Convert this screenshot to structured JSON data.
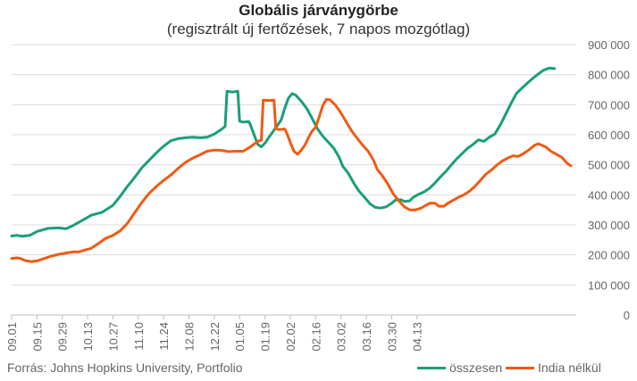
{
  "chart_data": {
    "type": "line",
    "title": "Globális járványgörbe",
    "subtitle": "(regisztrált új fertőzések, 7 napos mozgótlag)",
    "source": "Forrás: Johns Hopkins University, Portfolio",
    "ylim": [
      0,
      900000
    ],
    "yticks": [
      0,
      100000,
      200000,
      300000,
      400000,
      500000,
      600000,
      700000,
      800000,
      900000
    ],
    "ytick_labels": [
      "0",
      "100 000",
      "200 000",
      "300 000",
      "400 000",
      "500 000",
      "600 000",
      "700 000",
      "800 000",
      "900 000"
    ],
    "xtick_labels": [
      "09.01",
      "09.15",
      "09.29",
      "10.13",
      "10.27",
      "11.10",
      "11.24",
      "12.08",
      "12.22",
      "01.05",
      "01.19",
      "02.02",
      "02.16",
      "03.02",
      "03.16",
      "03.30",
      "04.13"
    ],
    "grid": true,
    "legend": "bottom-right",
    "series": [
      {
        "name": "összesen",
        "color": "#1a9e7a",
        "points": [
          [
            0,
            263000
          ],
          [
            3,
            265000
          ],
          [
            6,
            262000
          ],
          [
            10,
            265000
          ],
          [
            14,
            278000
          ],
          [
            20,
            288000
          ],
          [
            26,
            290000
          ],
          [
            30,
            287000
          ],
          [
            34,
            298000
          ],
          [
            40,
            318000
          ],
          [
            44,
            332000
          ],
          [
            50,
            342000
          ],
          [
            56,
            365000
          ],
          [
            60,
            395000
          ],
          [
            64,
            428000
          ],
          [
            68,
            458000
          ],
          [
            72,
            490000
          ],
          [
            76,
            515000
          ],
          [
            80,
            540000
          ],
          [
            84,
            562000
          ],
          [
            88,
            580000
          ],
          [
            92,
            587000
          ],
          [
            96,
            590000
          ],
          [
            100,
            592000
          ],
          [
            104,
            590000
          ],
          [
            108,
            592000
          ],
          [
            112,
            602000
          ],
          [
            116,
            618000
          ],
          [
            118,
            628000
          ],
          [
            119,
            745000
          ],
          [
            122,
            742000
          ],
          [
            125,
            745000
          ],
          [
            126,
            645000
          ],
          [
            128,
            642000
          ],
          [
            131,
            644000
          ],
          [
            132,
            632000
          ],
          [
            134,
            600000
          ],
          [
            136,
            568000
          ],
          [
            138,
            560000
          ],
          [
            140,
            572000
          ],
          [
            142,
            590000
          ],
          [
            145,
            615000
          ],
          [
            147,
            632000
          ],
          [
            149,
            650000
          ],
          [
            151,
            690000
          ],
          [
            153,
            722000
          ],
          [
            155,
            737000
          ],
          [
            157,
            732000
          ],
          [
            160,
            712000
          ],
          [
            163,
            688000
          ],
          [
            166,
            655000
          ],
          [
            169,
            620000
          ],
          [
            172,
            595000
          ],
          [
            175,
            575000
          ],
          [
            178,
            555000
          ],
          [
            181,
            525000
          ],
          [
            183,
            495000
          ],
          [
            186,
            472000
          ],
          [
            189,
            440000
          ],
          [
            192,
            412000
          ],
          [
            195,
            392000
          ],
          [
            198,
            370000
          ],
          [
            201,
            358000
          ],
          [
            204,
            356000
          ],
          [
            207,
            360000
          ],
          [
            210,
            372000
          ],
          [
            212,
            382000
          ],
          [
            215,
            384000
          ],
          [
            217,
            378000
          ],
          [
            220,
            380000
          ],
          [
            222,
            392000
          ],
          [
            225,
            402000
          ],
          [
            228,
            410000
          ],
          [
            231,
            422000
          ],
          [
            234,
            440000
          ],
          [
            237,
            460000
          ],
          [
            240,
            478000
          ],
          [
            243,
            500000
          ],
          [
            246,
            520000
          ],
          [
            249,
            538000
          ],
          [
            252,
            555000
          ],
          [
            255,
            568000
          ],
          [
            258,
            583000
          ],
          [
            261,
            578000
          ],
          [
            264,
            592000
          ],
          [
            267,
            602000
          ],
          [
            270,
            632000
          ],
          [
            273,
            668000
          ],
          [
            276,
            705000
          ],
          [
            279,
            738000
          ],
          [
            282,
            755000
          ],
          [
            285,
            772000
          ],
          [
            288,
            788000
          ],
          [
            291,
            802000
          ],
          [
            294,
            815000
          ],
          [
            297,
            822000
          ],
          [
            300,
            820000
          ]
        ]
      },
      {
        "name": "India nélkül",
        "color": "#f05a14",
        "points": [
          [
            0,
            188000
          ],
          [
            3,
            190000
          ],
          [
            5,
            188000
          ],
          [
            8,
            180000
          ],
          [
            11,
            178000
          ],
          [
            14,
            180000
          ],
          [
            18,
            188000
          ],
          [
            22,
            196000
          ],
          [
            26,
            202000
          ],
          [
            30,
            206000
          ],
          [
            34,
            210000
          ],
          [
            37,
            210000
          ],
          [
            40,
            215000
          ],
          [
            44,
            222000
          ],
          [
            48,
            238000
          ],
          [
            52,
            255000
          ],
          [
            56,
            265000
          ],
          [
            60,
            280000
          ],
          [
            64,
            305000
          ],
          [
            68,
            340000
          ],
          [
            72,
            375000
          ],
          [
            76,
            405000
          ],
          [
            80,
            428000
          ],
          [
            84,
            448000
          ],
          [
            88,
            466000
          ],
          [
            92,
            488000
          ],
          [
            96,
            508000
          ],
          [
            100,
            522000
          ],
          [
            104,
            533000
          ],
          [
            108,
            545000
          ],
          [
            112,
            549000
          ],
          [
            116,
            548000
          ],
          [
            120,
            544000
          ],
          [
            124,
            545000
          ],
          [
            128,
            545000
          ],
          [
            132,
            560000
          ],
          [
            136,
            578000
          ],
          [
            138,
            582000
          ],
          [
            139,
            715000
          ],
          [
            142,
            714000
          ],
          [
            145,
            715000
          ],
          [
            146,
            620000
          ],
          [
            148,
            617000
          ],
          [
            151,
            619000
          ],
          [
            152,
            606000
          ],
          [
            154,
            575000
          ],
          [
            156,
            545000
          ],
          [
            158,
            535000
          ],
          [
            160,
            548000
          ],
          [
            162,
            565000
          ],
          [
            164,
            590000
          ],
          [
            166,
            612000
          ],
          [
            168,
            625000
          ],
          [
            170,
            660000
          ],
          [
            172,
            698000
          ],
          [
            174,
            718000
          ],
          [
            176,
            716000
          ],
          [
            179,
            698000
          ],
          [
            182,
            672000
          ],
          [
            185,
            642000
          ],
          [
            188,
            612000
          ],
          [
            191,
            588000
          ],
          [
            194,
            565000
          ],
          [
            197,
            545000
          ],
          [
            200,
            515000
          ],
          [
            202,
            485000
          ],
          [
            205,
            462000
          ],
          [
            208,
            435000
          ],
          [
            211,
            402000
          ],
          [
            214,
            380000
          ],
          [
            217,
            360000
          ],
          [
            220,
            350000
          ],
          [
            223,
            350000
          ],
          [
            226,
            355000
          ],
          [
            229,
            365000
          ],
          [
            231,
            372000
          ],
          [
            234,
            372000
          ],
          [
            236,
            362000
          ],
          [
            239,
            362000
          ],
          [
            241,
            372000
          ],
          [
            244,
            382000
          ],
          [
            247,
            392000
          ],
          [
            250,
            400000
          ],
          [
            253,
            412000
          ],
          [
            256,
            428000
          ],
          [
            259,
            448000
          ],
          [
            262,
            468000
          ],
          [
            265,
            482000
          ],
          [
            268,
            498000
          ],
          [
            271,
            512000
          ],
          [
            274,
            522000
          ],
          [
            277,
            530000
          ],
          [
            280,
            528000
          ],
          [
            283,
            538000
          ],
          [
            286,
            550000
          ],
          [
            289,
            565000
          ],
          [
            291,
            570000
          ],
          [
            293,
            565000
          ],
          [
            295,
            560000
          ],
          [
            298,
            545000
          ],
          [
            301,
            535000
          ],
          [
            304,
            525000
          ],
          [
            307,
            505000
          ],
          [
            309,
            497000
          ]
        ]
      }
    ]
  }
}
